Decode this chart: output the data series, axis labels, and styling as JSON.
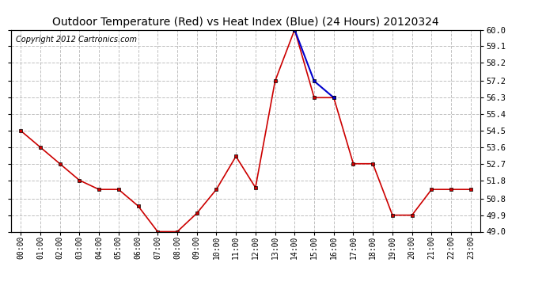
{
  "title": "Outdoor Temperature (Red) vs Heat Index (Blue) (24 Hours) 20120324",
  "copyright": "Copyright 2012 Cartronics.com",
  "x_labels": [
    "00:00",
    "01:00",
    "02:00",
    "03:00",
    "04:00",
    "05:00",
    "06:00",
    "07:00",
    "08:00",
    "09:00",
    "10:00",
    "11:00",
    "12:00",
    "13:00",
    "14:00",
    "15:00",
    "16:00",
    "17:00",
    "18:00",
    "19:00",
    "20:00",
    "21:00",
    "22:00",
    "23:00"
  ],
  "temp_red": [
    54.5,
    53.6,
    52.7,
    51.8,
    51.3,
    51.3,
    50.4,
    49.0,
    49.0,
    50.0,
    51.3,
    53.1,
    51.4,
    57.2,
    60.0,
    56.3,
    56.3,
    52.7,
    52.7,
    49.9,
    49.9,
    51.3,
    51.3,
    51.3
  ],
  "heat_blue": [
    null,
    null,
    null,
    null,
    null,
    null,
    null,
    null,
    null,
    null,
    null,
    null,
    null,
    null,
    60.0,
    57.2,
    56.3,
    null,
    null,
    null,
    null,
    null,
    null,
    null
  ],
  "y_min": 49.0,
  "y_max": 60.0,
  "y_ticks": [
    49.0,
    49.9,
    50.8,
    51.8,
    52.7,
    53.6,
    54.5,
    55.4,
    56.3,
    57.2,
    58.2,
    59.1,
    60.0
  ],
  "line_color_red": "#cc0000",
  "line_color_blue": "#0000cc",
  "bg_color": "#ffffff",
  "grid_color": "#c0c0c0",
  "title_fontsize": 10,
  "copyright_fontsize": 7,
  "marker_size": 3.0
}
